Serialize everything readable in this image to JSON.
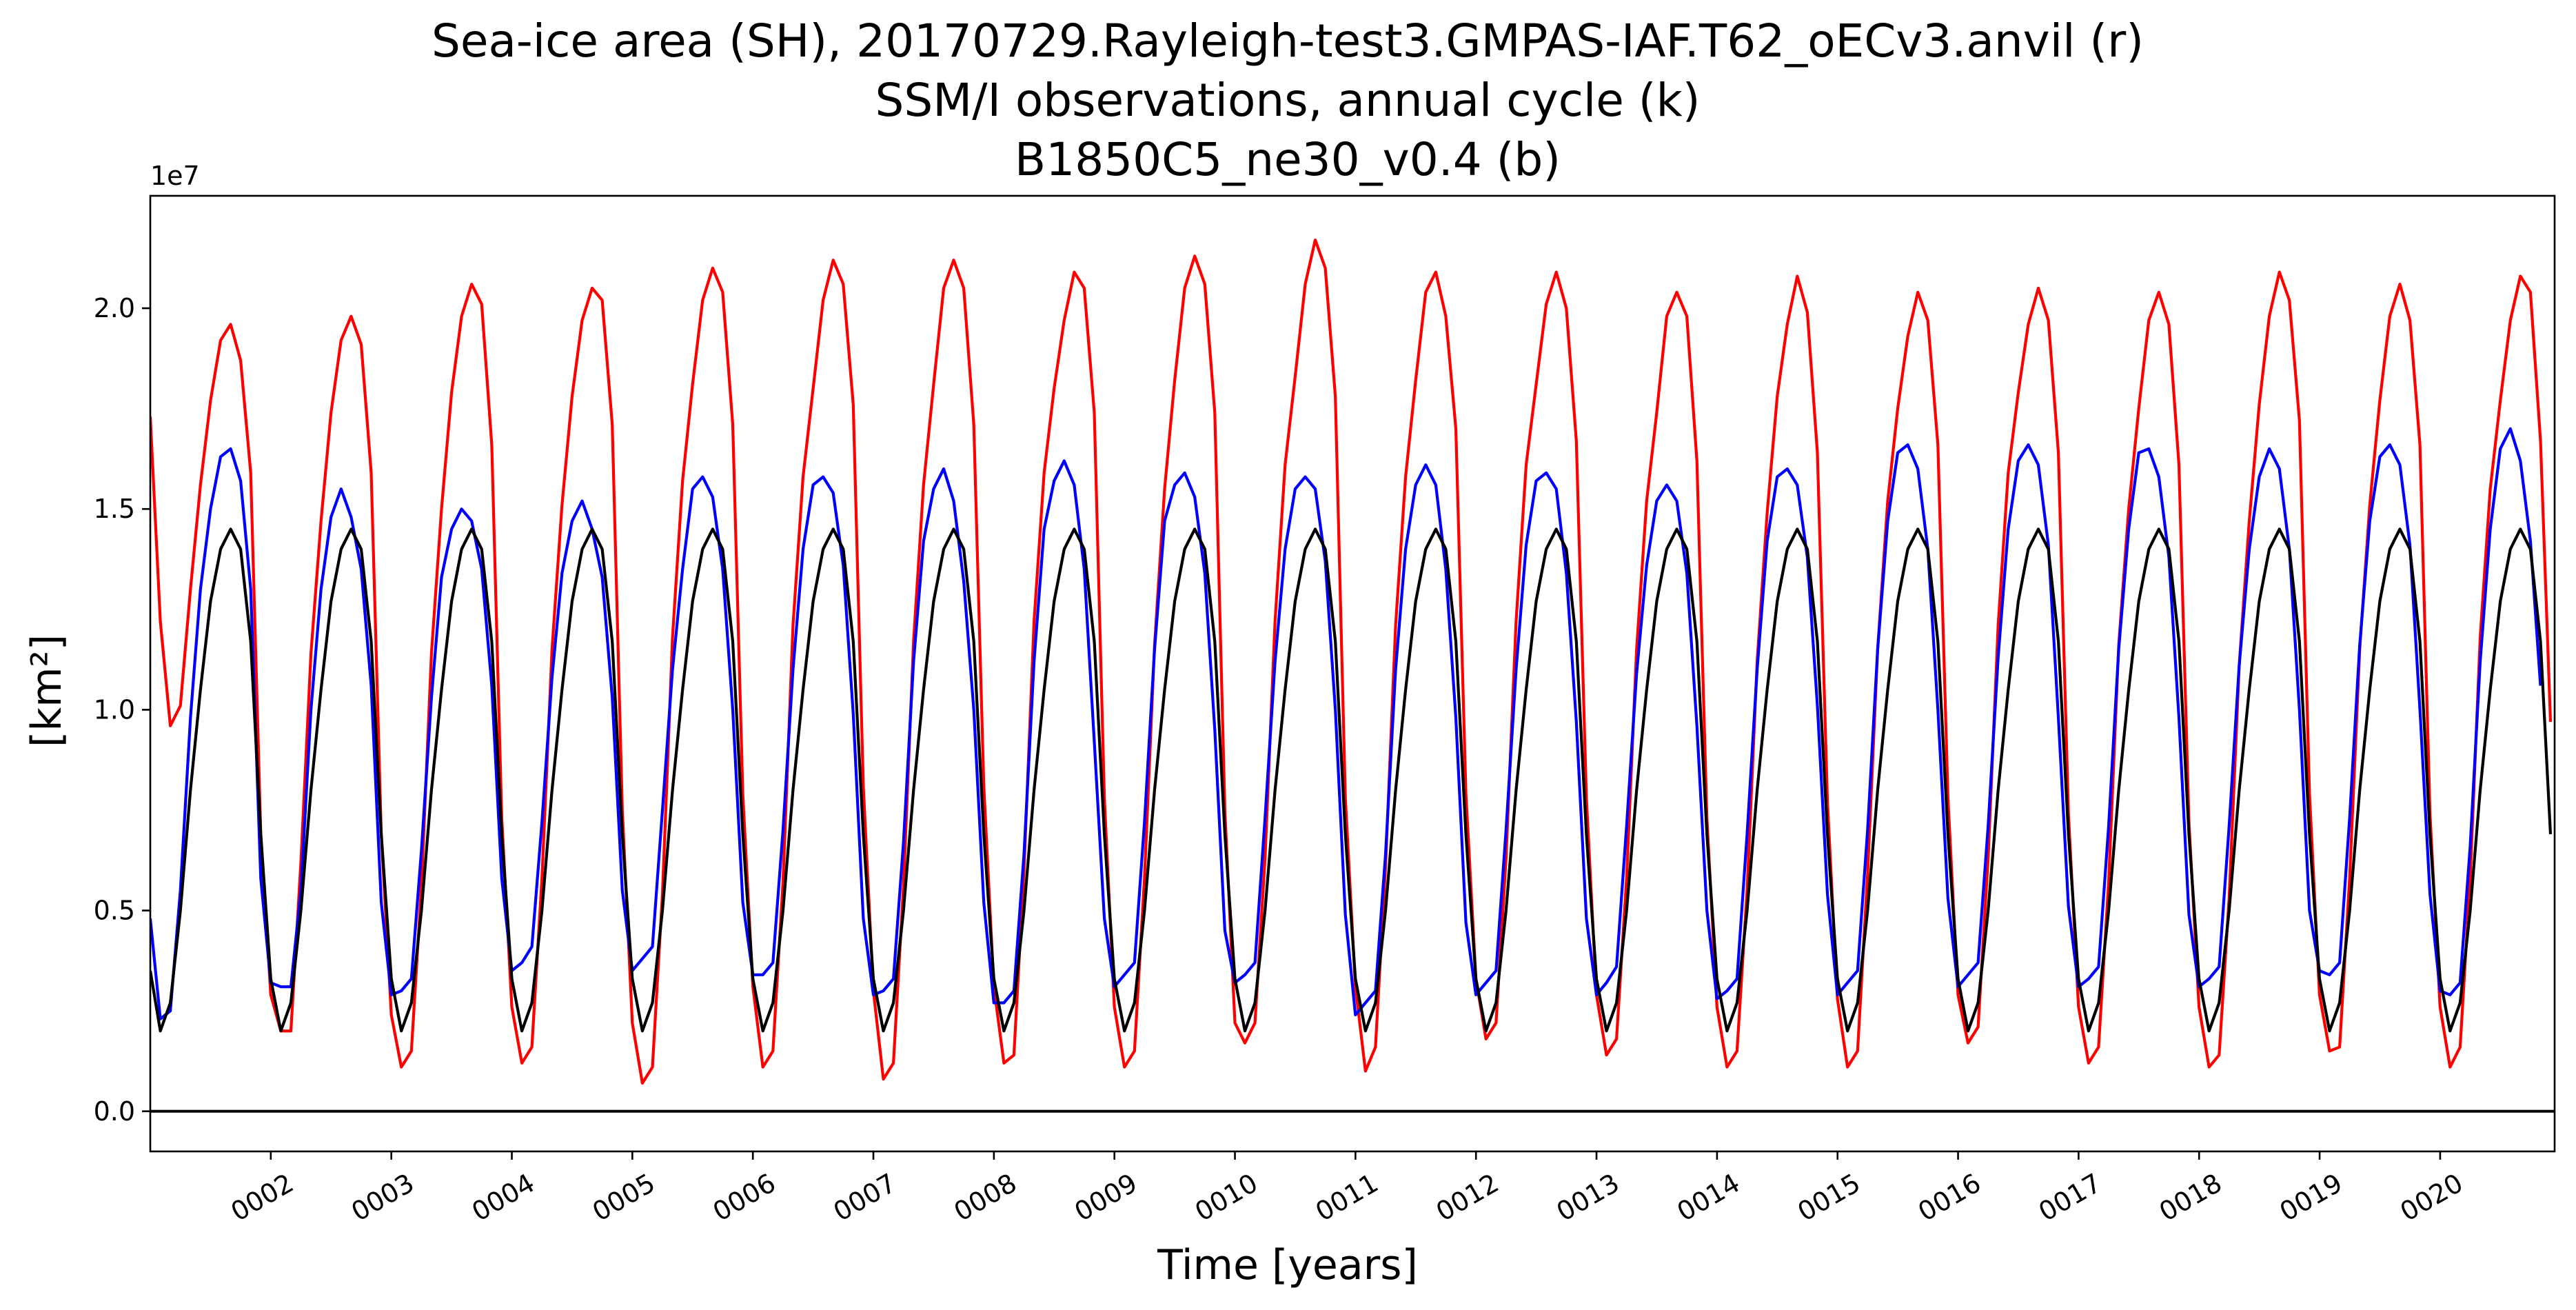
{
  "chart_data": {
    "type": "line",
    "title": [
      "Sea-ice area (SH), 20170729.Rayleigh-test3.GMPAS-IAF.T62_oECv3.anvil (r)",
      "SSM/I observations, annual cycle (k)",
      "B1850C5_ne30_v0.4 (b)"
    ],
    "xlabel": "Time [years]",
    "ylabel": "[km²]",
    "y_offset_label": "1e7",
    "xlim": [
      1.0,
      20.95
    ],
    "ylim": [
      -0.1,
      2.28
    ],
    "x_ticks": [
      2,
      3,
      4,
      5,
      6,
      7,
      8,
      9,
      10,
      11,
      12,
      13,
      14,
      15,
      16,
      17,
      18,
      19,
      20
    ],
    "x_tick_labels": [
      "0002",
      "0003",
      "0004",
      "0005",
      "0006",
      "0007",
      "0008",
      "0009",
      "0010",
      "0011",
      "0012",
      "0013",
      "0014",
      "0015",
      "0016",
      "0017",
      "0018",
      "0019",
      "0020"
    ],
    "y_ticks": [
      0.0,
      0.5,
      1.0,
      1.5,
      2.0
    ],
    "y_tick_labels": [
      "0.0",
      "0.5",
      "1.0",
      "1.5",
      "2.0"
    ],
    "hline": 0.0,
    "series": [
      {
        "name": "20170729.Rayleigh-test3.GMPAS-IAF.T62_oECv3.anvil (r)",
        "color": "#ff0000",
        "x_start": 1.0,
        "x_step": 0.08333,
        "values": [
          1.73,
          1.22,
          0.96,
          1.01,
          1.3,
          1.56,
          1.77,
          1.92,
          1.96,
          1.87,
          1.59,
          0.69,
          0.29,
          0.2,
          0.2,
          0.62,
          1.14,
          1.47,
          1.74,
          1.92,
          1.98,
          1.91,
          1.59,
          0.69,
          0.24,
          0.11,
          0.15,
          0.56,
          1.14,
          1.5,
          1.79,
          1.98,
          2.06,
          2.01,
          1.66,
          0.73,
          0.26,
          0.12,
          0.16,
          0.58,
          1.15,
          1.51,
          1.78,
          1.97,
          2.05,
          2.02,
          1.71,
          0.75,
          0.22,
          0.07,
          0.11,
          0.54,
          1.18,
          1.57,
          1.81,
          2.02,
          2.1,
          2.04,
          1.71,
          0.79,
          0.31,
          0.11,
          0.15,
          0.57,
          1.21,
          1.58,
          1.8,
          2.02,
          2.12,
          2.06,
          1.76,
          0.81,
          0.3,
          0.08,
          0.12,
          0.56,
          1.17,
          1.56,
          1.81,
          2.05,
          2.12,
          2.05,
          1.71,
          0.81,
          0.31,
          0.12,
          0.14,
          0.6,
          1.22,
          1.59,
          1.8,
          1.97,
          2.09,
          2.05,
          1.74,
          0.78,
          0.26,
          0.11,
          0.15,
          0.58,
          1.16,
          1.55,
          1.82,
          2.05,
          2.13,
          2.06,
          1.74,
          0.75,
          0.22,
          0.17,
          0.22,
          0.63,
          1.22,
          1.61,
          1.83,
          2.06,
          2.17,
          2.1,
          1.78,
          0.78,
          0.31,
          0.1,
          0.16,
          0.61,
          1.21,
          1.58,
          1.82,
          2.04,
          2.09,
          1.98,
          1.7,
          0.79,
          0.33,
          0.18,
          0.22,
          0.63,
          1.22,
          1.61,
          1.81,
          2.01,
          2.09,
          2.0,
          1.67,
          0.78,
          0.29,
          0.14,
          0.18,
          0.58,
          1.15,
          1.52,
          1.74,
          1.98,
          2.04,
          1.98,
          1.62,
          0.73,
          0.26,
          0.11,
          0.15,
          0.55,
          1.12,
          1.49,
          1.78,
          1.96,
          2.08,
          1.99,
          1.64,
          0.77,
          0.28,
          0.11,
          0.15,
          0.59,
          1.15,
          1.52,
          1.75,
          1.93,
          2.04,
          1.97,
          1.66,
          0.78,
          0.29,
          0.17,
          0.21,
          0.63,
          1.21,
          1.59,
          1.79,
          1.96,
          2.05,
          1.97,
          1.64,
          0.74,
          0.26,
          0.12,
          0.16,
          0.57,
          1.16,
          1.5,
          1.75,
          1.97,
          2.04,
          1.96,
          1.61,
          0.72,
          0.26,
          0.11,
          0.14,
          0.53,
          1.11,
          1.47,
          1.76,
          1.98,
          2.09,
          2.02,
          1.72,
          0.79,
          0.29,
          0.15,
          0.16,
          0.58,
          1.15,
          1.51,
          1.77,
          1.98,
          2.06,
          1.97,
          1.66,
          0.74,
          0.26,
          0.11,
          0.16,
          0.58,
          1.18,
          1.55,
          1.77,
          1.97,
          2.08,
          2.04,
          1.67,
          0.97
        ]
      },
      {
        "name": "SSM/I observations, annual cycle (k)",
        "color": "#0000ff",
        "x_start": 1.0,
        "x_step": 0.08333,
        "values": [
          0.48,
          0.23,
          0.25,
          0.55,
          0.98,
          1.3,
          1.5,
          1.63,
          1.65,
          1.57,
          1.3,
          0.58,
          0.32,
          0.31,
          0.31,
          0.55,
          1.0,
          1.3,
          1.48,
          1.55,
          1.48,
          1.35,
          1.06,
          0.52,
          0.29,
          0.3,
          0.33,
          0.65,
          1.03,
          1.33,
          1.45,
          1.5,
          1.47,
          1.35,
          1.06,
          0.58,
          0.35,
          0.37,
          0.41,
          0.72,
          1.08,
          1.34,
          1.47,
          1.52,
          1.45,
          1.33,
          1.03,
          0.55,
          0.35,
          0.38,
          0.41,
          0.75,
          1.1,
          1.35,
          1.55,
          1.58,
          1.53,
          1.35,
          1.0,
          0.52,
          0.34,
          0.34,
          0.37,
          0.7,
          1.1,
          1.4,
          1.56,
          1.58,
          1.54,
          1.36,
          0.99,
          0.48,
          0.29,
          0.3,
          0.33,
          0.67,
          1.12,
          1.42,
          1.55,
          1.6,
          1.52,
          1.32,
          1.0,
          0.52,
          0.27,
          0.27,
          0.3,
          0.64,
          1.12,
          1.45,
          1.57,
          1.62,
          1.56,
          1.35,
          0.92,
          0.48,
          0.31,
          0.34,
          0.37,
          0.72,
          1.15,
          1.47,
          1.56,
          1.59,
          1.53,
          1.34,
          0.95,
          0.45,
          0.32,
          0.34,
          0.37,
          0.73,
          1.12,
          1.4,
          1.55,
          1.58,
          1.55,
          1.37,
          1.0,
          0.49,
          0.24,
          0.27,
          0.3,
          0.64,
          1.1,
          1.4,
          1.56,
          1.61,
          1.56,
          1.35,
          0.98,
          0.47,
          0.29,
          0.32,
          0.35,
          0.7,
          1.1,
          1.41,
          1.57,
          1.59,
          1.55,
          1.34,
          0.97,
          0.48,
          0.29,
          0.32,
          0.36,
          0.71,
          1.09,
          1.36,
          1.52,
          1.56,
          1.52,
          1.34,
          0.96,
          0.5,
          0.28,
          0.3,
          0.33,
          0.69,
          1.1,
          1.42,
          1.58,
          1.6,
          1.56,
          1.38,
          1.01,
          0.54,
          0.29,
          0.32,
          0.35,
          0.7,
          1.15,
          1.47,
          1.64,
          1.66,
          1.6,
          1.4,
          1.0,
          0.53,
          0.31,
          0.34,
          0.37,
          0.71,
          1.13,
          1.45,
          1.62,
          1.66,
          1.61,
          1.41,
          0.98,
          0.51,
          0.31,
          0.33,
          0.36,
          0.71,
          1.15,
          1.45,
          1.64,
          1.65,
          1.58,
          1.38,
          0.98,
          0.49,
          0.31,
          0.33,
          0.36,
          0.71,
          1.11,
          1.4,
          1.58,
          1.65,
          1.6,
          1.4,
          1.0,
          0.5,
          0.35,
          0.34,
          0.37,
          0.73,
          1.16,
          1.47,
          1.63,
          1.66,
          1.61,
          1.41,
          1.0,
          0.54,
          0.3,
          0.29,
          0.32,
          0.66,
          1.12,
          1.45,
          1.65,
          1.7,
          1.62,
          1.42,
          1.06
        ]
      },
      {
        "name": "B1850C5_ne30_v0.4 (b)",
        "color": "#000000",
        "x_start": 1.0,
        "x_step": 0.08333,
        "values": [
          0.35,
          0.2,
          0.27,
          0.5,
          0.8,
          1.05,
          1.27,
          1.4,
          1.45,
          1.4,
          1.17,
          0.69,
          0.33,
          0.2,
          0.27,
          0.5,
          0.8,
          1.05,
          1.27,
          1.4,
          1.45,
          1.4,
          1.17,
          0.69,
          0.33,
          0.2,
          0.27,
          0.5,
          0.8,
          1.05,
          1.27,
          1.4,
          1.45,
          1.4,
          1.17,
          0.69,
          0.33,
          0.2,
          0.27,
          0.5,
          0.8,
          1.05,
          1.27,
          1.4,
          1.45,
          1.4,
          1.17,
          0.69,
          0.33,
          0.2,
          0.27,
          0.5,
          0.8,
          1.05,
          1.27,
          1.4,
          1.45,
          1.4,
          1.17,
          0.69,
          0.33,
          0.2,
          0.27,
          0.5,
          0.8,
          1.05,
          1.27,
          1.4,
          1.45,
          1.4,
          1.17,
          0.69,
          0.33,
          0.2,
          0.27,
          0.5,
          0.8,
          1.05,
          1.27,
          1.4,
          1.45,
          1.4,
          1.17,
          0.69,
          0.33,
          0.2,
          0.27,
          0.5,
          0.8,
          1.05,
          1.27,
          1.4,
          1.45,
          1.4,
          1.17,
          0.69,
          0.33,
          0.2,
          0.27,
          0.5,
          0.8,
          1.05,
          1.27,
          1.4,
          1.45,
          1.4,
          1.17,
          0.69,
          0.33,
          0.2,
          0.27,
          0.5,
          0.8,
          1.05,
          1.27,
          1.4,
          1.45,
          1.4,
          1.17,
          0.69,
          0.33,
          0.2,
          0.27,
          0.5,
          0.8,
          1.05,
          1.27,
          1.4,
          1.45,
          1.4,
          1.17,
          0.69,
          0.33,
          0.2,
          0.27,
          0.5,
          0.8,
          1.05,
          1.27,
          1.4,
          1.45,
          1.4,
          1.17,
          0.69,
          0.33,
          0.2,
          0.27,
          0.5,
          0.8,
          1.05,
          1.27,
          1.4,
          1.45,
          1.4,
          1.17,
          0.69,
          0.33,
          0.2,
          0.27,
          0.5,
          0.8,
          1.05,
          1.27,
          1.4,
          1.45,
          1.4,
          1.17,
          0.69,
          0.33,
          0.2,
          0.27,
          0.5,
          0.8,
          1.05,
          1.27,
          1.4,
          1.45,
          1.4,
          1.17,
          0.69,
          0.33,
          0.2,
          0.27,
          0.5,
          0.8,
          1.05,
          1.27,
          1.4,
          1.45,
          1.4,
          1.17,
          0.69,
          0.33,
          0.2,
          0.27,
          0.5,
          0.8,
          1.05,
          1.27,
          1.4,
          1.45,
          1.4,
          1.17,
          0.69,
          0.33,
          0.2,
          0.27,
          0.5,
          0.8,
          1.05,
          1.27,
          1.4,
          1.45,
          1.4,
          1.17,
          0.69,
          0.33,
          0.2,
          0.27,
          0.5,
          0.8,
          1.05,
          1.27,
          1.4,
          1.45,
          1.4,
          1.17,
          0.69,
          0.33,
          0.2,
          0.27,
          0.5,
          0.8,
          1.05,
          1.27,
          1.4,
          1.45,
          1.4,
          1.17,
          0.69
        ]
      }
    ],
    "grid": false,
    "legend": "none"
  }
}
